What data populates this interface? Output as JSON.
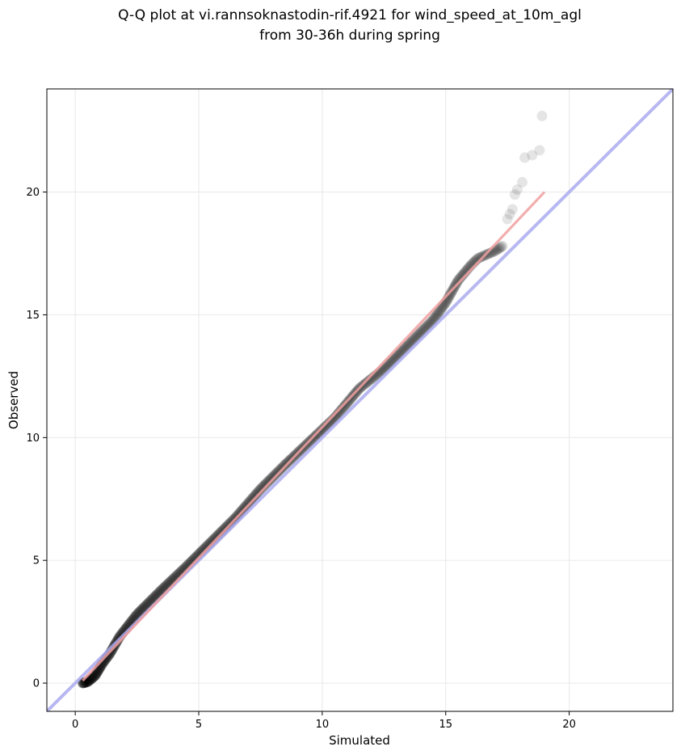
{
  "chart_data": {
    "type": "scatter",
    "title_line1": "Q-Q plot at vi.rannsoknastodin-rif.4921 for wind_speed_at_10m_agl",
    "title_line2": "from 30-36h during spring",
    "xlabel": "Simulated",
    "ylabel": "Observed",
    "xlim": [
      -1.15,
      24.2
    ],
    "ylim": [
      -1.15,
      24.2
    ],
    "xticks": [
      0,
      5,
      10,
      15,
      20
    ],
    "yticks": [
      0,
      5,
      10,
      15,
      20
    ],
    "grid": true,
    "colors": {
      "points": "#000000",
      "identity_line": "#aaaaf0",
      "fit_line": "#f0a0a0",
      "grid": "#ebebeb"
    },
    "identity_line": {
      "x": [
        -1.15,
        24.2
      ],
      "y": [
        -1.15,
        24.2
      ]
    },
    "fit_line": {
      "x": [
        0.3,
        19.0
      ],
      "y": [
        0.1,
        20.0
      ]
    },
    "qq_curve": [
      [
        0.3,
        0.0
      ],
      [
        0.5,
        0.05
      ],
      [
        0.8,
        0.3
      ],
      [
        1.1,
        0.8
      ],
      [
        1.4,
        1.2
      ],
      [
        1.8,
        1.9
      ],
      [
        2.5,
        2.8
      ],
      [
        3.5,
        3.8
      ],
      [
        4.5,
        4.75
      ],
      [
        5.5,
        5.75
      ],
      [
        6.5,
        6.75
      ],
      [
        7.5,
        7.9
      ],
      [
        8.5,
        8.9
      ],
      [
        9.5,
        9.85
      ],
      [
        10.5,
        10.8
      ],
      [
        11.5,
        12.0
      ],
      [
        12.5,
        12.8
      ],
      [
        13.5,
        13.8
      ],
      [
        14.5,
        14.8
      ],
      [
        15.0,
        15.5
      ],
      [
        15.5,
        16.4
      ],
      [
        16.0,
        17.0
      ],
      [
        16.3,
        17.3
      ],
      [
        17.0,
        17.6
      ],
      [
        17.3,
        17.8
      ]
    ],
    "outliers": [
      [
        17.5,
        18.9
      ],
      [
        17.6,
        19.1
      ],
      [
        17.7,
        19.3
      ],
      [
        17.8,
        19.9
      ],
      [
        17.9,
        20.1
      ],
      [
        18.1,
        20.4
      ],
      [
        18.2,
        21.4
      ],
      [
        18.5,
        21.5
      ],
      [
        18.8,
        21.7
      ],
      [
        18.9,
        23.1
      ]
    ]
  }
}
